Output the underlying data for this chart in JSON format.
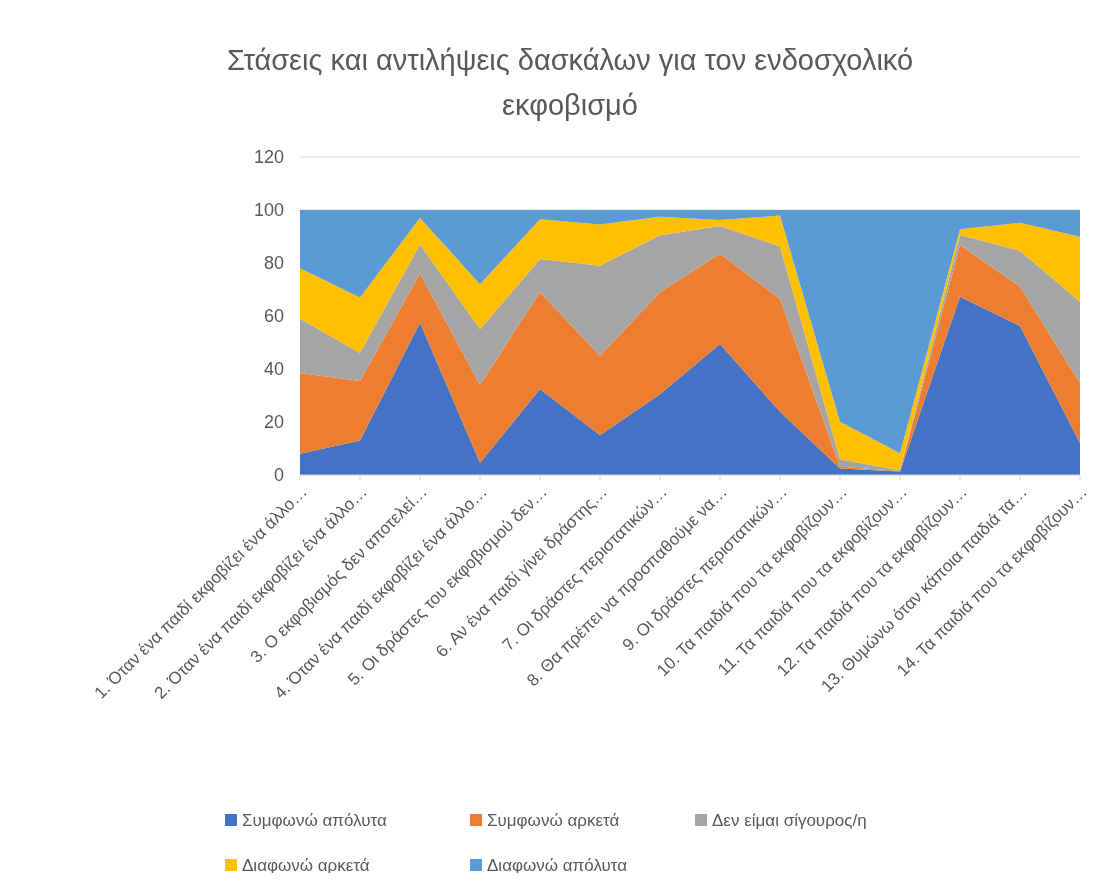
{
  "chart_data": {
    "type": "area",
    "title": "Στάσεις και αντιλήψεις δασκάλων για τον ενδοσχολικό εκφοβισμό",
    "categories": [
      "1. Όταν ένα παιδί εκφοβίζει ένα άλλο…",
      "2. Όταν ένα παιδί εκφοβίζει ένα άλλο…",
      "3. Ο εκφοβισμός δεν αποτελεί…",
      "4. Όταν ένα παιδί εκφοβίζει ένα άλλο…",
      "5. Οι δράστες του εκφοβισμού δεν…",
      "6. Αν ένα παιδί γίνει δράστης…",
      "7. Οι δράστες περιστατικών…",
      "8. Θα πρέπει να προσπαθούμε να…",
      "9. Οι δράστες περιστατικών…",
      "10. Τα παιδιά που τα εκφοβίζουν…",
      "11. Τα παιδιά που τα εκφοβίζουν…",
      "12. Τα παιδιά που τα εκφοβίζουν…",
      "13. Θυμώνω όταν κάποια παιδιά τα…",
      "14. Τα παιδιά που τα εκφοβίζουν…"
    ],
    "stacked": true,
    "series": [
      {
        "name": "Συμφωνώ απόλυτα",
        "color": "#4472c4",
        "values": [
          8,
          13,
          57.5,
          4.5,
          32.5,
          15,
          30.5,
          49.4,
          23.9,
          2.5,
          1.3,
          67.3,
          56.2,
          12
        ]
      },
      {
        "name": "Συμφωνώ αρκετά",
        "color": "#ed7d31",
        "values": [
          30.5,
          22.5,
          18.5,
          29.5,
          36.5,
          30,
          38.5,
          34.2,
          42.5,
          0.6,
          0.2,
          19.5,
          14.9,
          22.6
        ]
      },
      {
        "name": "Δεν είμαι σίγουρος/η",
        "color": "#a5a5a5",
        "values": [
          20.5,
          10.5,
          11,
          21,
          12.5,
          34,
          21.5,
          10.4,
          19.8,
          2.8,
          0.3,
          3.8,
          13.5,
          30.8
        ]
      },
      {
        "name": "Διαφωνώ αρκετά",
        "color": "#ffc000",
        "values": [
          19,
          21,
          10,
          17,
          15,
          15.5,
          7,
          2.2,
          11.7,
          14.2,
          6.4,
          2.1,
          10.6,
          24.5
        ]
      },
      {
        "name": "Διαφωνώ απόλυτα",
        "color": "#5b9bd5",
        "values": [
          22,
          33,
          3,
          28,
          3.5,
          5.5,
          2.5,
          3.8,
          2.1,
          79.9,
          91.8,
          7.3,
          4.8,
          10.1
        ]
      }
    ],
    "ylim": [
      0,
      120
    ],
    "yticks": [
      0,
      20,
      40,
      60,
      80,
      100,
      120
    ],
    "grid": "y",
    "legend": "bottom"
  }
}
